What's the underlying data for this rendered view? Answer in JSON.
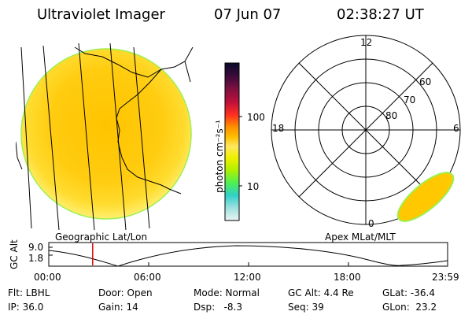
{
  "header": {
    "instrument": "Ultraviolet Imager",
    "date": "07 Jun 07",
    "time": "02:38:27 UT"
  },
  "geo_panel": {
    "label": "Geographic Lat/Lon"
  },
  "polar_panel": {
    "label": "Apex MLat/MLT",
    "mlt_labels": [
      "12",
      "18",
      "6",
      "0"
    ],
    "lat_labels": [
      "60",
      "70",
      "80"
    ]
  },
  "colorbar": {
    "unit_label": "photon cm⁻²s⁻¹",
    "ticks": [
      "100",
      "10"
    ],
    "colors": [
      "#0a0a2a",
      "#3a0a3a",
      "#7a1040",
      "#b0103a",
      "#e01030",
      "#ff4020",
      "#ff9000",
      "#ffc000",
      "#ffe060",
      "#f0f000",
      "#b0f000",
      "#40f060",
      "#30d0d0",
      "#90e0e0",
      "#e0f0f0"
    ]
  },
  "timeline": {
    "ylabel": "GC Alt",
    "y_ticks": [
      "9.0",
      "1.8"
    ],
    "x_ticks": [
      "00:00",
      "06:00",
      "12:00",
      "18:00",
      "23:59"
    ],
    "current_time_fraction": 0.1101
  },
  "footer": {
    "filter": "Flt: LBHL",
    "door": "Door: Open",
    "mode": "Mode: Normal",
    "gc_alt": "GC Alt: 4.4 Re",
    "glat": "GLat: -36.4",
    "ip": "IP: 36.0",
    "gain": "Gain: 14",
    "dsp": "Dsp:   -8.3",
    "seq": "Seq: 39",
    "glon": "GLon:  23.2"
  },
  "colors": {
    "emission": "#ffc800",
    "emission_bright": "#ffe94a",
    "emission_rim": "#a0ff40",
    "marker": "#e00000"
  }
}
